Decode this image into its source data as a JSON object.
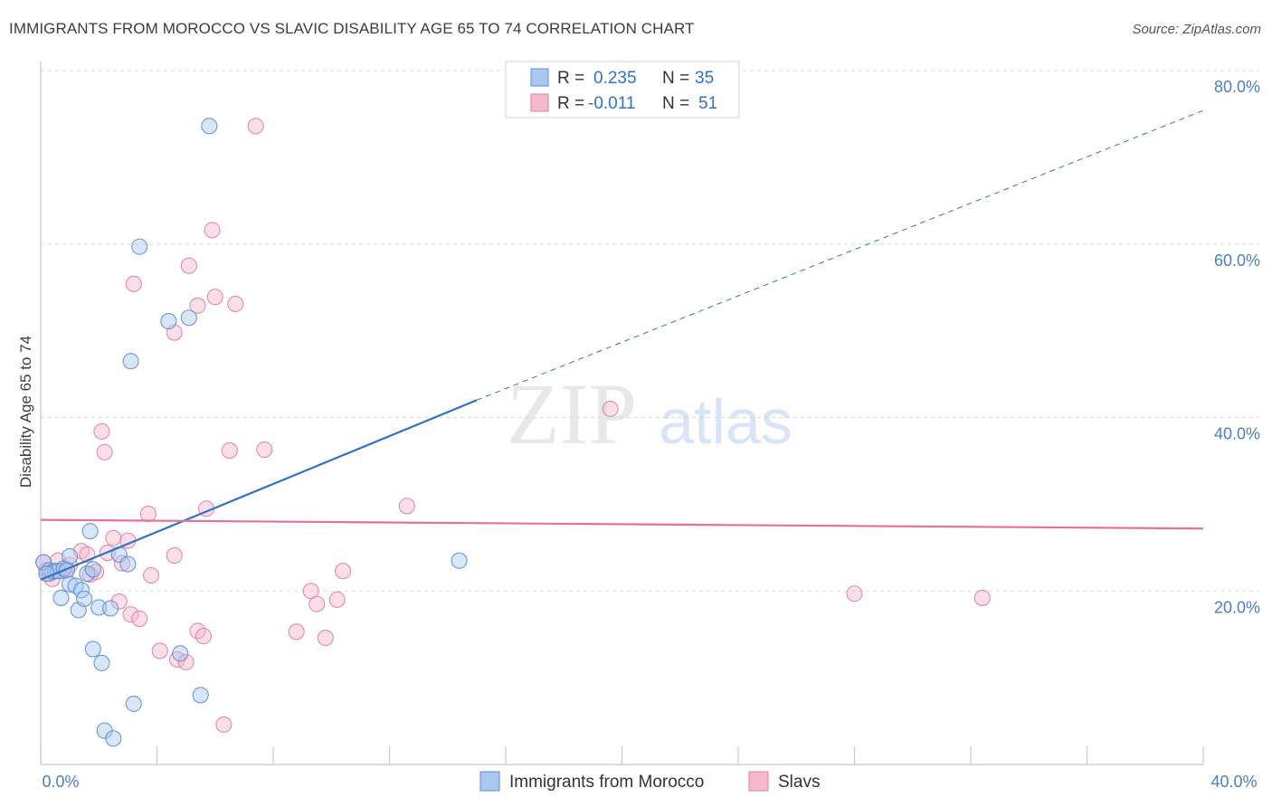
{
  "title": "IMMIGRANTS FROM MOROCCO VS SLAVIC DISABILITY AGE 65 TO 74 CORRELATION CHART",
  "source": "Source: ZipAtlas.com",
  "watermark": {
    "zip": "ZIP",
    "atlas": "atlas"
  },
  "colors": {
    "blue_fill": "#a9c8f0",
    "blue_stroke": "#5b8fd4",
    "blue_line": "#2f72c9",
    "pink_fill": "#f6b8cb",
    "pink_stroke": "#e27ea0",
    "pink_line": "#e8709a",
    "axis_text": "#4a7fc8",
    "grid": "#d9d9d9"
  },
  "legend": {
    "rows": [
      {
        "r_label": "R =",
        "r_value": "0.235",
        "n_label": "N =",
        "n_value": "35"
      },
      {
        "r_label": "R =",
        "r_value": "-0.011",
        "n_label": "N =",
        "n_value": "51"
      }
    ]
  },
  "chart_data": {
    "type": "scatter",
    "title": "IMMIGRANTS FROM MOROCCO VS SLAVIC DISABILITY AGE 65 TO 74 CORRELATION CHART",
    "xlabel": "",
    "ylabel": "Disability Age 65 to 74",
    "xlim": [
      0,
      40
    ],
    "ylim": [
      0,
      80
    ],
    "x_tick_labels": [
      "0.0%",
      "40.0%"
    ],
    "y_tick_labels": [
      "20.0%",
      "40.0%",
      "60.0%",
      "80.0%"
    ],
    "y_ticks": [
      20,
      40,
      60,
      80
    ],
    "grid": true,
    "legend_position": "bottom",
    "series": [
      {
        "name": "Immigrants from Morocco",
        "color": "#a9c8f0",
        "trend": {
          "x": [
            0,
            15
          ],
          "y": [
            21.3,
            42.0
          ],
          "extended_to": [
            40,
            75.4
          ]
        },
        "points": [
          [
            0.1,
            23.3
          ],
          [
            0.3,
            22.4
          ],
          [
            0.4,
            22.2
          ],
          [
            0.5,
            22.3
          ],
          [
            0.6,
            22.3
          ],
          [
            0.7,
            19.2
          ],
          [
            0.8,
            22.6
          ],
          [
            0.9,
            22.4
          ],
          [
            1.0,
            24.0
          ],
          [
            1.0,
            20.8
          ],
          [
            1.2,
            20.6
          ],
          [
            1.3,
            17.8
          ],
          [
            1.4,
            20.1
          ],
          [
            1.5,
            19.1
          ],
          [
            1.6,
            22.0
          ],
          [
            1.7,
            26.9
          ],
          [
            1.8,
            22.5
          ],
          [
            1.8,
            13.3
          ],
          [
            2.0,
            18.1
          ],
          [
            2.1,
            11.7
          ],
          [
            2.2,
            3.9
          ],
          [
            2.4,
            18.0
          ],
          [
            2.5,
            3.0
          ],
          [
            2.7,
            24.2
          ],
          [
            3.0,
            23.1
          ],
          [
            3.1,
            46.5
          ],
          [
            3.2,
            7.0
          ],
          [
            3.4,
            59.7
          ],
          [
            4.4,
            51.1
          ],
          [
            4.8,
            12.8
          ],
          [
            5.1,
            51.5
          ],
          [
            5.5,
            8.0
          ],
          [
            5.8,
            73.6
          ],
          [
            14.4,
            23.5
          ],
          [
            0.2,
            22.0
          ]
        ]
      },
      {
        "name": "Slavs",
        "color": "#f6b8cb",
        "trend": {
          "x": [
            0,
            40
          ],
          "y": [
            28.2,
            27.2
          ]
        },
        "points": [
          [
            0.1,
            23.3
          ],
          [
            0.2,
            22.4
          ],
          [
            0.4,
            21.4
          ],
          [
            0.6,
            23.5
          ],
          [
            0.7,
            22.3
          ],
          [
            0.9,
            22.5
          ],
          [
            1.0,
            23.0
          ],
          [
            1.4,
            24.6
          ],
          [
            1.6,
            24.2
          ],
          [
            1.7,
            21.9
          ],
          [
            1.9,
            22.2
          ],
          [
            2.1,
            38.4
          ],
          [
            2.2,
            36.0
          ],
          [
            2.3,
            24.4
          ],
          [
            2.5,
            26.1
          ],
          [
            2.7,
            18.8
          ],
          [
            2.8,
            23.2
          ],
          [
            3.0,
            25.8
          ],
          [
            3.1,
            17.3
          ],
          [
            3.2,
            55.4
          ],
          [
            3.4,
            16.8
          ],
          [
            3.7,
            28.9
          ],
          [
            3.8,
            21.8
          ],
          [
            4.1,
            13.1
          ],
          [
            4.6,
            24.1
          ],
          [
            4.6,
            49.8
          ],
          [
            4.7,
            12.1
          ],
          [
            5.0,
            11.8
          ],
          [
            5.1,
            57.5
          ],
          [
            5.4,
            15.4
          ],
          [
            5.4,
            52.9
          ],
          [
            5.6,
            14.8
          ],
          [
            5.7,
            29.5
          ],
          [
            5.9,
            61.6
          ],
          [
            6.0,
            53.9
          ],
          [
            6.3,
            4.6
          ],
          [
            6.5,
            36.2
          ],
          [
            6.7,
            53.1
          ],
          [
            7.4,
            73.6
          ],
          [
            7.7,
            36.3
          ],
          [
            8.8,
            15.3
          ],
          [
            9.3,
            20.0
          ],
          [
            9.5,
            18.5
          ],
          [
            9.8,
            14.6
          ],
          [
            10.2,
            19.0
          ],
          [
            10.4,
            22.3
          ],
          [
            12.6,
            29.8
          ],
          [
            19.6,
            41.0
          ],
          [
            28.0,
            19.7
          ],
          [
            32.4,
            19.2
          ],
          [
            0.3,
            22.0
          ]
        ]
      }
    ]
  }
}
